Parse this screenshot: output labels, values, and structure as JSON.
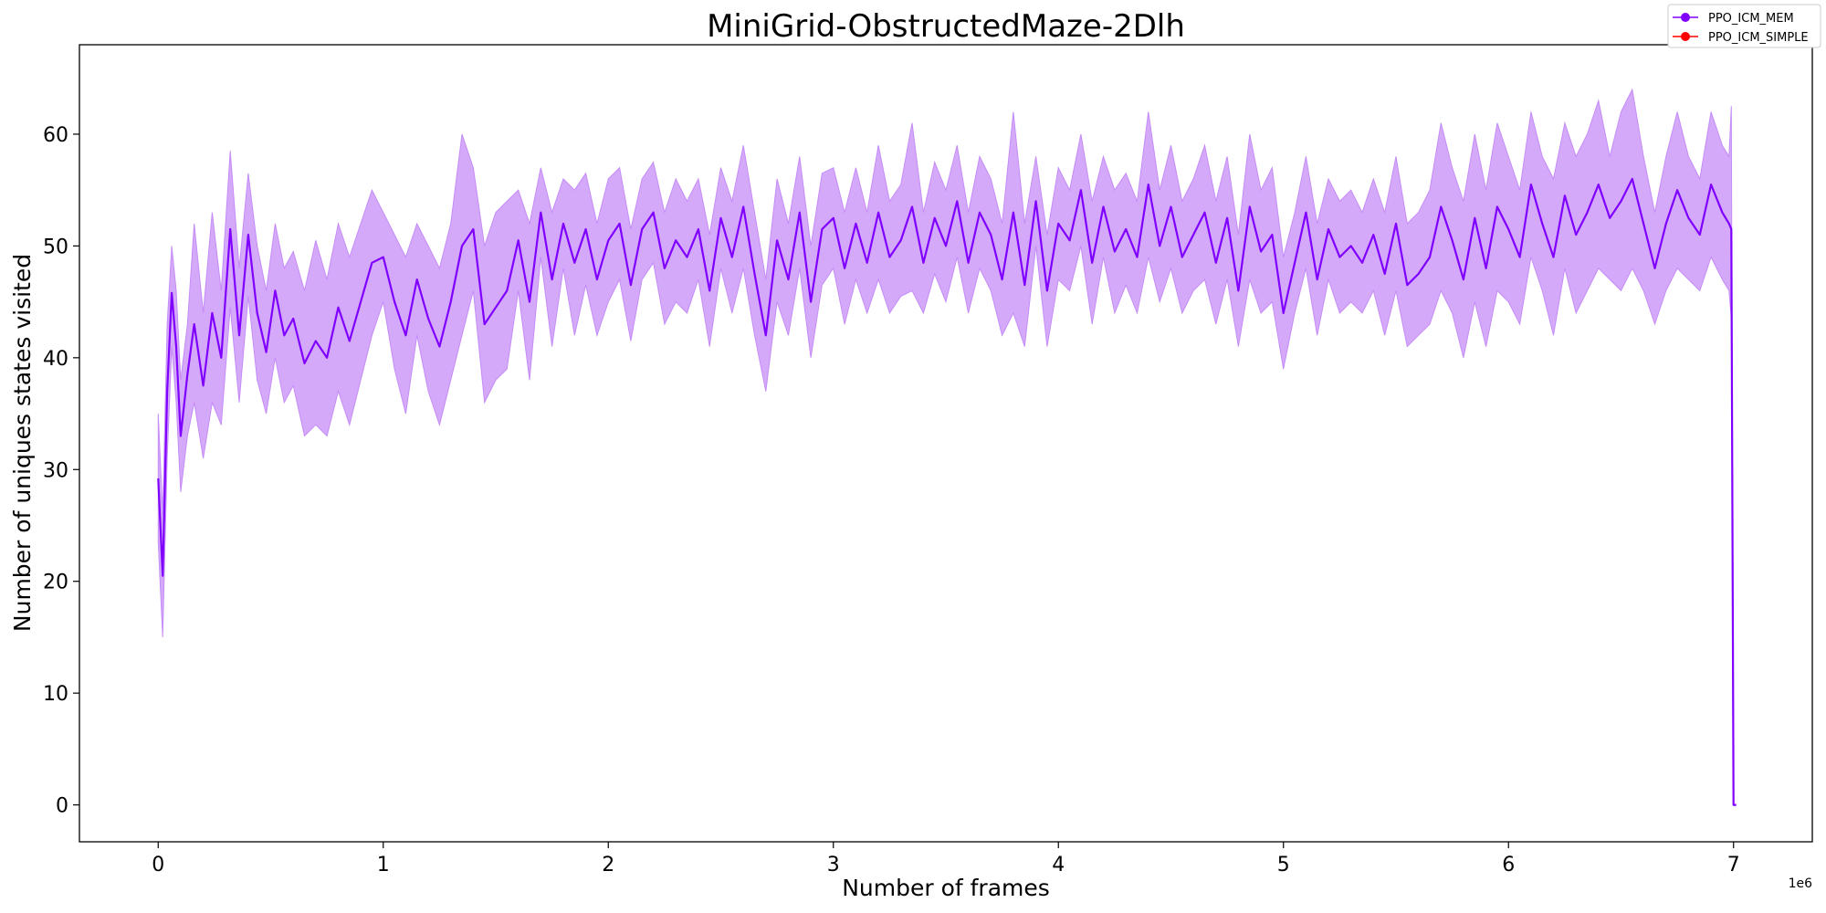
{
  "chart_data": {
    "type": "line",
    "title": "MiniGrid-ObstructedMaze-2Dlh",
    "xlabel": "Number of frames",
    "ylabel": "Number of uniques states visited",
    "x_offset_text": "1e6",
    "xlim": [
      -0.35,
      7.35
    ],
    "ylim": [
      -3.3,
      68.0
    ],
    "xticks": [
      0,
      1,
      2,
      3,
      4,
      5,
      6,
      7
    ],
    "xtick_labels": [
      "0",
      "1",
      "2",
      "3",
      "4",
      "5",
      "6",
      "7"
    ],
    "yticks": [
      0,
      10,
      20,
      30,
      40,
      50,
      60
    ],
    "ytick_labels": [
      "0",
      "10",
      "20",
      "30",
      "40",
      "50",
      "60"
    ],
    "grid": false,
    "legend": {
      "placement": "top-right",
      "entries": [
        {
          "name": "PPO_ICM_MEM",
          "color": "#8000ff"
        },
        {
          "name": "PPO_ICM_SIMPLE",
          "color": "#ff0000"
        }
      ]
    },
    "series": [
      {
        "name": "PPO_ICM_MEM",
        "color": "#8000ff",
        "band_color": "#c58cf7",
        "x": [
          0.0,
          0.02,
          0.04,
          0.06,
          0.08,
          0.1,
          0.13,
          0.16,
          0.2,
          0.24,
          0.28,
          0.32,
          0.36,
          0.4,
          0.44,
          0.48,
          0.52,
          0.56,
          0.6,
          0.65,
          0.7,
          0.75,
          0.8,
          0.85,
          0.9,
          0.95,
          1.0,
          1.05,
          1.1,
          1.15,
          1.2,
          1.25,
          1.3,
          1.35,
          1.4,
          1.45,
          1.5,
          1.55,
          1.6,
          1.65,
          1.7,
          1.75,
          1.8,
          1.85,
          1.9,
          1.95,
          2.0,
          2.05,
          2.1,
          2.15,
          2.2,
          2.25,
          2.3,
          2.35,
          2.4,
          2.45,
          2.5,
          2.55,
          2.6,
          2.65,
          2.7,
          2.75,
          2.8,
          2.85,
          2.9,
          2.95,
          3.0,
          3.05,
          3.1,
          3.15,
          3.2,
          3.25,
          3.3,
          3.35,
          3.4,
          3.45,
          3.5,
          3.55,
          3.6,
          3.65,
          3.7,
          3.75,
          3.8,
          3.85,
          3.9,
          3.95,
          4.0,
          4.05,
          4.1,
          4.15,
          4.2,
          4.25,
          4.3,
          4.35,
          4.4,
          4.45,
          4.5,
          4.55,
          4.6,
          4.65,
          4.7,
          4.75,
          4.8,
          4.85,
          4.9,
          4.95,
          5.0,
          5.05,
          5.1,
          5.15,
          5.2,
          5.25,
          5.3,
          5.35,
          5.4,
          5.45,
          5.5,
          5.55,
          5.6,
          5.65,
          5.7,
          5.75,
          5.8,
          5.85,
          5.9,
          5.95,
          6.0,
          6.05,
          6.1,
          6.15,
          6.2,
          6.25,
          6.3,
          6.35,
          6.4,
          6.45,
          6.5,
          6.55,
          6.6,
          6.65,
          6.7,
          6.75,
          6.8,
          6.85,
          6.9,
          6.95,
          6.98,
          6.99,
          7.0
        ],
        "y": [
          29.2,
          20.5,
          37.0,
          45.8,
          41.0,
          33.0,
          38.5,
          43.0,
          37.5,
          44.0,
          40.0,
          51.5,
          42.0,
          51.0,
          44.0,
          40.5,
          46.0,
          42.0,
          43.5,
          39.5,
          41.5,
          40.0,
          44.5,
          41.5,
          45.0,
          48.5,
          49.0,
          45.0,
          42.0,
          47.0,
          43.5,
          41.0,
          45.0,
          50.0,
          51.5,
          43.0,
          44.5,
          46.0,
          50.5,
          45.0,
          53.0,
          47.0,
          52.0,
          48.5,
          51.5,
          47.0,
          50.5,
          52.0,
          46.5,
          51.5,
          53.0,
          48.0,
          50.5,
          49.0,
          51.5,
          46.0,
          52.5,
          49.0,
          53.5,
          47.5,
          42.0,
          50.5,
          47.0,
          53.0,
          45.0,
          51.5,
          52.5,
          48.0,
          52.0,
          48.5,
          53.0,
          49.0,
          50.5,
          53.5,
          48.5,
          52.5,
          50.0,
          54.0,
          48.5,
          53.0,
          51.0,
          47.0,
          53.0,
          46.5,
          54.0,
          46.0,
          52.0,
          50.5,
          55.0,
          48.5,
          53.5,
          49.5,
          51.5,
          49.0,
          55.5,
          50.0,
          53.5,
          49.0,
          51.0,
          53.0,
          48.5,
          52.5,
          46.0,
          53.5,
          49.5,
          51.0,
          44.0,
          48.5,
          53.0,
          47.0,
          51.5,
          49.0,
          50.0,
          48.5,
          51.0,
          47.5,
          52.0,
          46.5,
          47.5,
          49.0,
          53.5,
          50.5,
          47.0,
          52.5,
          48.0,
          53.5,
          51.5,
          49.0,
          55.5,
          52.0,
          49.0,
          54.5,
          51.0,
          53.0,
          55.5,
          52.5,
          54.0,
          56.0,
          52.0,
          48.0,
          52.0,
          55.0,
          52.5,
          51.0,
          55.5,
          53.0,
          52.0,
          51.5,
          0.0
        ],
        "upper": [
          35.0,
          26.0,
          43.0,
          50.0,
          46.0,
          38.0,
          43.0,
          52.0,
          44.0,
          53.0,
          46.0,
          58.5,
          48.0,
          56.5,
          50.0,
          46.0,
          52.0,
          48.0,
          49.5,
          46.0,
          50.5,
          47.0,
          52.0,
          49.0,
          52.0,
          55.0,
          53.0,
          51.0,
          49.0,
          52.0,
          50.0,
          48.0,
          52.0,
          60.0,
          57.0,
          50.0,
          53.0,
          54.0,
          55.0,
          52.0,
          57.0,
          53.0,
          56.0,
          55.0,
          56.5,
          52.0,
          56.0,
          57.0,
          51.5,
          56.0,
          57.5,
          53.0,
          56.0,
          54.0,
          56.0,
          51.0,
          57.0,
          54.0,
          59.0,
          53.0,
          47.0,
          56.0,
          52.0,
          58.0,
          50.0,
          56.5,
          57.0,
          53.0,
          57.0,
          53.0,
          59.0,
          54.0,
          55.5,
          61.0,
          53.0,
          57.5,
          55.0,
          59.0,
          53.0,
          58.0,
          56.0,
          52.0,
          62.0,
          52.0,
          58.0,
          51.0,
          57.0,
          55.0,
          60.0,
          54.0,
          58.0,
          55.0,
          56.5,
          54.0,
          62.0,
          55.0,
          59.0,
          54.0,
          56.0,
          59.0,
          54.0,
          58.0,
          51.0,
          60.0,
          55.0,
          57.0,
          49.0,
          53.0,
          58.0,
          52.0,
          56.0,
          54.0,
          55.0,
          53.0,
          56.0,
          53.0,
          58.0,
          52.0,
          53.0,
          55.0,
          61.0,
          57.0,
          54.0,
          60.0,
          55.0,
          61.0,
          58.0,
          55.0,
          62.0,
          58.0,
          56.0,
          61.0,
          58.0,
          60.0,
          63.0,
          58.0,
          62.0,
          64.0,
          58.0,
          53.0,
          58.0,
          62.0,
          58.0,
          56.0,
          62.0,
          59.0,
          58.0,
          62.5,
          0.0
        ],
        "lower": [
          23.5,
          15.0,
          31.0,
          41.0,
          36.0,
          28.0,
          33.0,
          36.0,
          31.0,
          36.0,
          34.0,
          44.5,
          36.0,
          45.5,
          38.0,
          35.0,
          40.0,
          36.0,
          37.5,
          33.0,
          34.0,
          33.0,
          37.0,
          34.0,
          38.0,
          42.0,
          45.0,
          39.0,
          35.0,
          42.0,
          37.0,
          34.0,
          38.0,
          42.0,
          46.0,
          36.0,
          38.0,
          39.0,
          46.0,
          38.0,
          49.0,
          41.0,
          48.0,
          42.0,
          46.5,
          42.0,
          45.0,
          47.0,
          41.5,
          47.0,
          48.5,
          43.0,
          45.0,
          44.0,
          47.0,
          41.0,
          48.0,
          44.0,
          48.0,
          42.0,
          37.0,
          45.0,
          42.0,
          48.0,
          40.0,
          46.5,
          48.0,
          43.0,
          47.0,
          44.0,
          47.0,
          44.0,
          45.5,
          46.0,
          44.0,
          47.5,
          45.0,
          49.0,
          44.0,
          48.0,
          46.0,
          42.0,
          44.0,
          41.0,
          50.0,
          41.0,
          47.0,
          46.0,
          50.0,
          43.0,
          49.0,
          44.0,
          46.5,
          44.0,
          49.0,
          45.0,
          48.0,
          44.0,
          46.0,
          47.0,
          43.0,
          47.0,
          41.0,
          47.0,
          44.0,
          45.0,
          39.0,
          44.0,
          48.0,
          42.0,
          47.0,
          44.0,
          45.0,
          44.0,
          46.0,
          42.0,
          46.0,
          41.0,
          42.0,
          43.0,
          46.0,
          44.0,
          40.0,
          45.0,
          41.0,
          46.0,
          45.0,
          43.0,
          49.0,
          46.0,
          42.0,
          48.0,
          44.0,
          46.0,
          48.0,
          47.0,
          46.0,
          48.0,
          46.0,
          43.0,
          46.0,
          48.0,
          47.0,
          46.0,
          49.0,
          47.0,
          46.0,
          43.5,
          0.0
        ]
      }
    ]
  }
}
